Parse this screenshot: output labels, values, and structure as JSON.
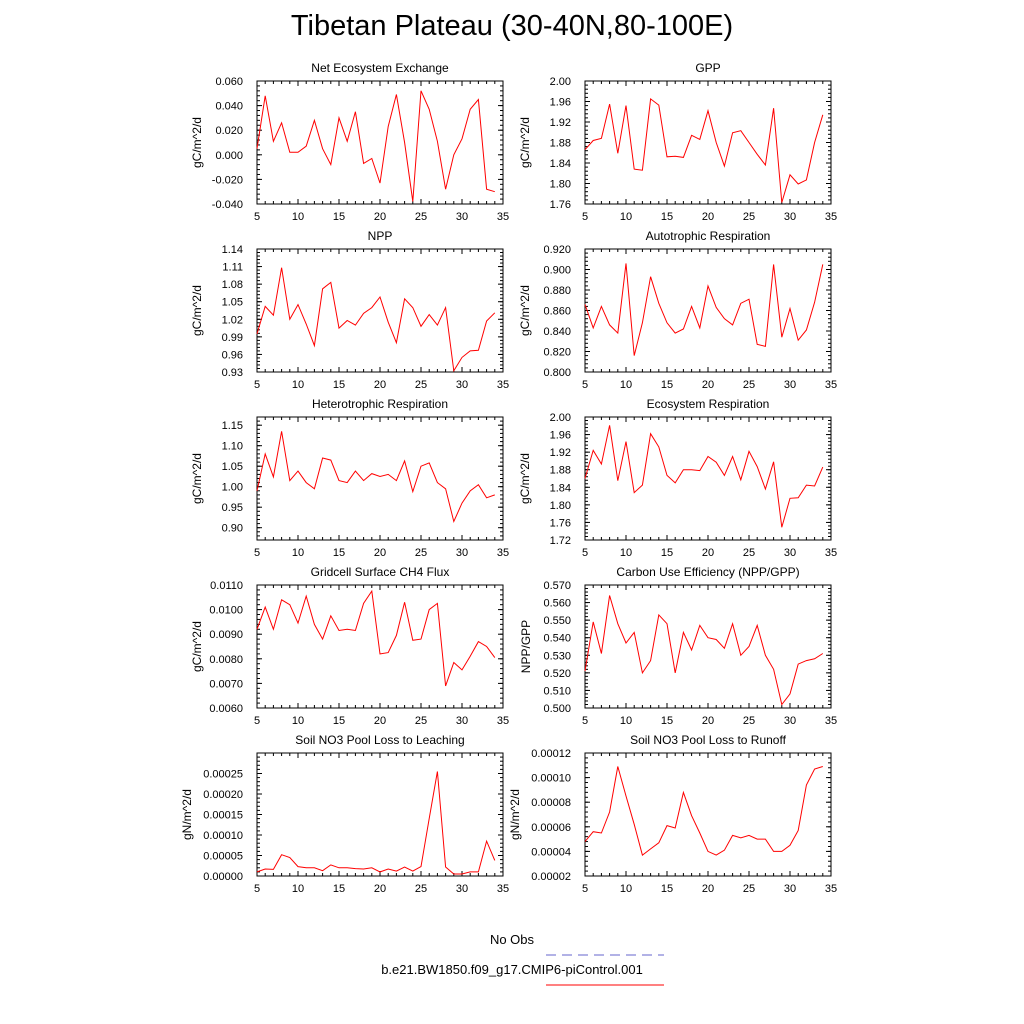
{
  "title": "Tibetan Plateau (30-40N,80-100E)",
  "legend": [
    {
      "label": "No Obs",
      "color": "#6666cc",
      "style": "dashed"
    },
    {
      "label": "b.e21.BW1850.f09_g17.CMIP6-piControl.001",
      "color": "#ff0000",
      "style": "solid"
    }
  ],
  "chart_data": [
    {
      "type": "line",
      "title": "Net Ecosystem Exchange",
      "ylabel": "gC/m^2/d",
      "xlim": [
        5,
        35
      ],
      "ylim": [
        -0.04,
        0.06
      ],
      "xticks": [
        5,
        10,
        15,
        20,
        25,
        30,
        35
      ],
      "yticks": [
        -0.04,
        -0.02,
        0.0,
        0.02,
        0.04,
        0.06
      ],
      "ytick_labels": [
        "-0.040",
        "-0.020",
        "0.000",
        "0.020",
        "0.040",
        "0.060"
      ],
      "x": [
        5,
        6,
        7,
        8,
        9,
        10,
        11,
        12,
        13,
        14,
        15,
        16,
        17,
        18,
        19,
        20,
        21,
        22,
        23,
        24,
        25,
        26,
        27,
        28,
        29,
        30,
        31,
        32,
        33,
        34
      ],
      "series": [
        {
          "values": [
            0.005,
            0.048,
            0.011,
            0.026,
            0.002,
            0.002,
            0.007,
            0.028,
            0.005,
            -0.008,
            0.03,
            0.011,
            0.035,
            -0.007,
            -0.003,
            -0.023,
            0.023,
            0.049,
            0.01,
            -0.038,
            0.052,
            0.037,
            0.011,
            -0.028,
            0.0,
            0.013,
            0.037,
            0.045,
            -0.028,
            -0.03
          ],
          "color": "#ff0000"
        }
      ]
    },
    {
      "type": "line",
      "title": "GPP",
      "ylabel": "gC/m^2/d",
      "xlim": [
        5,
        35
      ],
      "ylim": [
        1.76,
        2.0
      ],
      "xticks": [
        5,
        10,
        15,
        20,
        25,
        30,
        35
      ],
      "yticks": [
        1.76,
        1.8,
        1.84,
        1.88,
        1.92,
        1.96,
        2.0
      ],
      "ytick_labels": [
        "1.76",
        "1.80",
        "1.84",
        "1.88",
        "1.92",
        "1.96",
        "2.00"
      ],
      "x": [
        5,
        6,
        7,
        8,
        9,
        10,
        11,
        12,
        13,
        14,
        15,
        16,
        17,
        18,
        19,
        20,
        21,
        22,
        23,
        24,
        25,
        26,
        27,
        28,
        29,
        30,
        31,
        32,
        33,
        34
      ],
      "series": [
        {
          "values": [
            1.866,
            1.884,
            1.888,
            1.955,
            1.859,
            1.952,
            1.828,
            1.826,
            1.965,
            1.953,
            1.852,
            1.853,
            1.851,
            1.894,
            1.886,
            1.942,
            1.88,
            1.834,
            1.899,
            1.903,
            1.88,
            1.857,
            1.836,
            1.947,
            1.763,
            1.817,
            1.799,
            1.807,
            1.88,
            1.934
          ],
          "color": "#ff0000"
        }
      ]
    },
    {
      "type": "line",
      "title": "NPP",
      "ylabel": "gC/m^2/d",
      "xlim": [
        5,
        35
      ],
      "ylim": [
        0.93,
        1.14
      ],
      "xticks": [
        5,
        10,
        15,
        20,
        25,
        30,
        35
      ],
      "yticks": [
        0.93,
        0.96,
        0.99,
        1.02,
        1.05,
        1.08,
        1.11,
        1.14
      ],
      "ytick_labels": [
        "0.93",
        "0.96",
        "0.99",
        "1.02",
        "1.05",
        "1.08",
        "1.11",
        "1.14"
      ],
      "x": [
        5,
        6,
        7,
        8,
        9,
        10,
        11,
        12,
        13,
        14,
        15,
        16,
        17,
        18,
        19,
        20,
        21,
        22,
        23,
        24,
        25,
        26,
        27,
        28,
        29,
        30,
        31,
        32,
        33,
        34
      ],
      "series": [
        {
          "values": [
            0.995,
            1.042,
            1.027,
            1.108,
            1.02,
            1.045,
            1.012,
            0.975,
            1.072,
            1.083,
            1.005,
            1.018,
            1.01,
            1.03,
            1.04,
            1.058,
            1.015,
            0.98,
            1.055,
            1.04,
            1.008,
            1.028,
            1.01,
            1.04,
            0.932,
            0.955,
            0.966,
            0.967,
            1.017,
            1.031
          ],
          "color": "#ff0000"
        }
      ]
    },
    {
      "type": "line",
      "title": "Autotrophic Respiration",
      "ylabel": "gC/m^2/d",
      "xlim": [
        5,
        35
      ],
      "ylim": [
        0.8,
        0.92
      ],
      "xticks": [
        5,
        10,
        15,
        20,
        25,
        30,
        35
      ],
      "yticks": [
        0.8,
        0.82,
        0.84,
        0.86,
        0.88,
        0.9,
        0.92
      ],
      "ytick_labels": [
        "0.800",
        "0.820",
        "0.840",
        "0.860",
        "0.880",
        "0.900",
        "0.920"
      ],
      "x": [
        5,
        6,
        7,
        8,
        9,
        10,
        11,
        12,
        13,
        14,
        15,
        16,
        17,
        18,
        19,
        20,
        21,
        22,
        23,
        24,
        25,
        26,
        27,
        28,
        29,
        30,
        31,
        32,
        33,
        34
      ],
      "series": [
        {
          "values": [
            0.866,
            0.843,
            0.864,
            0.846,
            0.838,
            0.906,
            0.816,
            0.848,
            0.893,
            0.867,
            0.848,
            0.838,
            0.842,
            0.864,
            0.843,
            0.884,
            0.863,
            0.852,
            0.846,
            0.867,
            0.871,
            0.827,
            0.825,
            0.905,
            0.834,
            0.862,
            0.831,
            0.841,
            0.868,
            0.905
          ],
          "color": "#ff0000"
        }
      ]
    },
    {
      "type": "line",
      "title": "Heterotrophic Respiration",
      "ylabel": "gC/m^2/d",
      "xlim": [
        5,
        35
      ],
      "ylim": [
        0.87,
        1.17
      ],
      "xticks": [
        5,
        10,
        15,
        20,
        25,
        30,
        35
      ],
      "yticks": [
        0.9,
        0.95,
        1.0,
        1.05,
        1.1,
        1.15
      ],
      "ytick_labels": [
        "0.90",
        "0.95",
        "1.00",
        "1.05",
        "1.10",
        "1.15"
      ],
      "x": [
        5,
        6,
        7,
        8,
        9,
        10,
        11,
        12,
        13,
        14,
        15,
        16,
        17,
        18,
        19,
        20,
        21,
        22,
        23,
        24,
        25,
        26,
        27,
        28,
        29,
        30,
        31,
        32,
        33,
        34
      ],
      "series": [
        {
          "values": [
            0.99,
            1.08,
            1.024,
            1.135,
            1.015,
            1.038,
            1.01,
            0.995,
            1.07,
            1.065,
            1.015,
            1.01,
            1.038,
            1.015,
            1.032,
            1.025,
            1.03,
            1.015,
            1.063,
            0.988,
            1.05,
            1.058,
            1.01,
            0.995,
            0.915,
            0.96,
            0.99,
            1.005,
            0.973,
            0.98
          ],
          "color": "#ff0000"
        }
      ]
    },
    {
      "type": "line",
      "title": "Ecosystem Respiration",
      "ylabel": "gC/m^2/d",
      "xlim": [
        5,
        35
      ],
      "ylim": [
        1.72,
        2.0
      ],
      "xticks": [
        5,
        10,
        15,
        20,
        25,
        30,
        35
      ],
      "yticks": [
        1.72,
        1.76,
        1.8,
        1.84,
        1.88,
        1.92,
        1.96,
        2.0
      ],
      "ytick_labels": [
        "1.72",
        "1.76",
        "1.80",
        "1.84",
        "1.88",
        "1.92",
        "1.96",
        "2.00"
      ],
      "x": [
        5,
        6,
        7,
        8,
        9,
        10,
        11,
        12,
        13,
        14,
        15,
        16,
        17,
        18,
        19,
        20,
        21,
        22,
        23,
        24,
        25,
        26,
        27,
        28,
        29,
        30,
        31,
        32,
        33,
        34
      ],
      "series": [
        {
          "values": [
            1.86,
            1.924,
            1.893,
            1.981,
            1.855,
            1.944,
            1.828,
            1.845,
            1.962,
            1.932,
            1.867,
            1.85,
            1.88,
            1.88,
            1.878,
            1.91,
            1.897,
            1.867,
            1.91,
            1.857,
            1.922,
            1.887,
            1.836,
            1.898,
            1.749,
            1.815,
            1.816,
            1.845,
            1.843,
            1.886
          ],
          "color": "#ff0000"
        }
      ]
    },
    {
      "type": "line",
      "title": "Gridcell Surface CH4 Flux",
      "ylabel": "gC/m^2/d",
      "xlim": [
        5,
        35
      ],
      "ylim": [
        0.006,
        0.011
      ],
      "xticks": [
        5,
        10,
        15,
        20,
        25,
        30,
        35
      ],
      "yticks": [
        0.006,
        0.007,
        0.008,
        0.009,
        0.01,
        0.011
      ],
      "ytick_labels": [
        "0.0060",
        "0.0070",
        "0.0080",
        "0.0090",
        "0.0100",
        "0.0110"
      ],
      "x": [
        5,
        6,
        7,
        8,
        9,
        10,
        11,
        12,
        13,
        14,
        15,
        16,
        17,
        18,
        19,
        20,
        21,
        22,
        23,
        24,
        25,
        26,
        27,
        28,
        29,
        30,
        31,
        32,
        33,
        34
      ],
      "series": [
        {
          "values": [
            0.0092,
            0.0101,
            0.0092,
            0.0104,
            0.0102,
            0.00945,
            0.01055,
            0.0094,
            0.0088,
            0.00975,
            0.00915,
            0.0092,
            0.00915,
            0.01025,
            0.01075,
            0.0082,
            0.00825,
            0.00895,
            0.0103,
            0.00875,
            0.0088,
            0.01,
            0.01025,
            0.0069,
            0.00785,
            0.00755,
            0.0081,
            0.0087,
            0.0085,
            0.00805
          ],
          "color": "#ff0000"
        }
      ]
    },
    {
      "type": "line",
      "title": "Carbon Use Efficiency (NPP/GPP)",
      "ylabel": "NPP/GPP",
      "xlim": [
        5,
        35
      ],
      "ylim": [
        0.5,
        0.57
      ],
      "xticks": [
        5,
        10,
        15,
        20,
        25,
        30,
        35
      ],
      "yticks": [
        0.5,
        0.51,
        0.52,
        0.53,
        0.54,
        0.55,
        0.56,
        0.57
      ],
      "ytick_labels": [
        "0.500",
        "0.510",
        "0.520",
        "0.530",
        "0.540",
        "0.550",
        "0.560",
        "0.570"
      ],
      "x": [
        5,
        6,
        7,
        8,
        9,
        10,
        11,
        12,
        13,
        14,
        15,
        16,
        17,
        18,
        19,
        20,
        21,
        22,
        23,
        24,
        25,
        26,
        27,
        28,
        29,
        30,
        31,
        32,
        33,
        34
      ],
      "series": [
        {
          "values": [
            0.521,
            0.549,
            0.531,
            0.564,
            0.548,
            0.537,
            0.543,
            0.52,
            0.527,
            0.553,
            0.548,
            0.52,
            0.543,
            0.533,
            0.547,
            0.54,
            0.539,
            0.534,
            0.548,
            0.53,
            0.535,
            0.547,
            0.53,
            0.522,
            0.502,
            0.508,
            0.525,
            0.527,
            0.528,
            0.531
          ],
          "color": "#ff0000"
        }
      ]
    },
    {
      "type": "line",
      "title": "Soil NO3 Pool Loss to Leaching",
      "ylabel": "gN/m^2/d",
      "xlim": [
        5,
        35
      ],
      "ylim": [
        0.0,
        0.0003
      ],
      "xticks": [
        5,
        10,
        15,
        20,
        25,
        30,
        35
      ],
      "yticks": [
        0.0,
        5e-05,
        0.0001,
        0.00015,
        0.0002,
        0.00025
      ],
      "ytick_labels": [
        "0.00000",
        "0.00005",
        "0.00010",
        "0.00015",
        "0.00020",
        "0.00025"
      ],
      "x": [
        5,
        6,
        7,
        8,
        9,
        10,
        11,
        12,
        13,
        14,
        15,
        16,
        17,
        18,
        19,
        20,
        21,
        22,
        23,
        24,
        25,
        26,
        27,
        28,
        29,
        30,
        31,
        32,
        33,
        34
      ],
      "series": [
        {
          "values": [
            1e-05,
            1.7e-05,
            1.6e-05,
            5.2e-05,
            4.5e-05,
            2.3e-05,
            2e-05,
            2e-05,
            1.3e-05,
            2.7e-05,
            2e-05,
            2e-05,
            1.8e-05,
            1.7e-05,
            2e-05,
            1e-05,
            1.7e-05,
            1.2e-05,
            2.2e-05,
            1.2e-05,
            2.3e-05,
            0.00014,
            0.000255,
            2.2e-05,
            5e-06,
            5e-06,
            1e-05,
            1e-05,
            8.5e-05,
            3.8e-05
          ],
          "color": "#ff0000"
        }
      ]
    },
    {
      "type": "line",
      "title": "Soil NO3 Pool Loss to Runoff",
      "ylabel": "gN/m^2/d",
      "xlim": [
        5,
        35
      ],
      "ylim": [
        2e-05,
        0.00012
      ],
      "xticks": [
        5,
        10,
        15,
        20,
        25,
        30,
        35
      ],
      "yticks": [
        2e-05,
        4e-05,
        6e-05,
        8e-05,
        0.0001,
        0.00012
      ],
      "ytick_labels": [
        "0.00002",
        "0.00004",
        "0.00006",
        "0.00008",
        "0.00010",
        "0.00012"
      ],
      "x": [
        5,
        6,
        7,
        8,
        9,
        10,
        11,
        12,
        13,
        14,
        15,
        16,
        17,
        18,
        19,
        20,
        21,
        22,
        23,
        24,
        25,
        26,
        27,
        28,
        29,
        30,
        31,
        32,
        33,
        34
      ],
      "series": [
        {
          "values": [
            4.8e-05,
            5.6e-05,
            5.5e-05,
            7.2e-05,
            0.000109,
            8.5e-05,
            6.2e-05,
            3.7e-05,
            4.2e-05,
            4.7e-05,
            6.1e-05,
            5.9e-05,
            8.8e-05,
            6.9e-05,
            5.5e-05,
            4e-05,
            3.7e-05,
            4.1e-05,
            5.3e-05,
            5.1e-05,
            5.3e-05,
            5e-05,
            5e-05,
            4e-05,
            4e-05,
            4.5e-05,
            5.7e-05,
            9.4e-05,
            0.000107,
            0.000109
          ],
          "color": "#ff0000"
        }
      ]
    }
  ]
}
